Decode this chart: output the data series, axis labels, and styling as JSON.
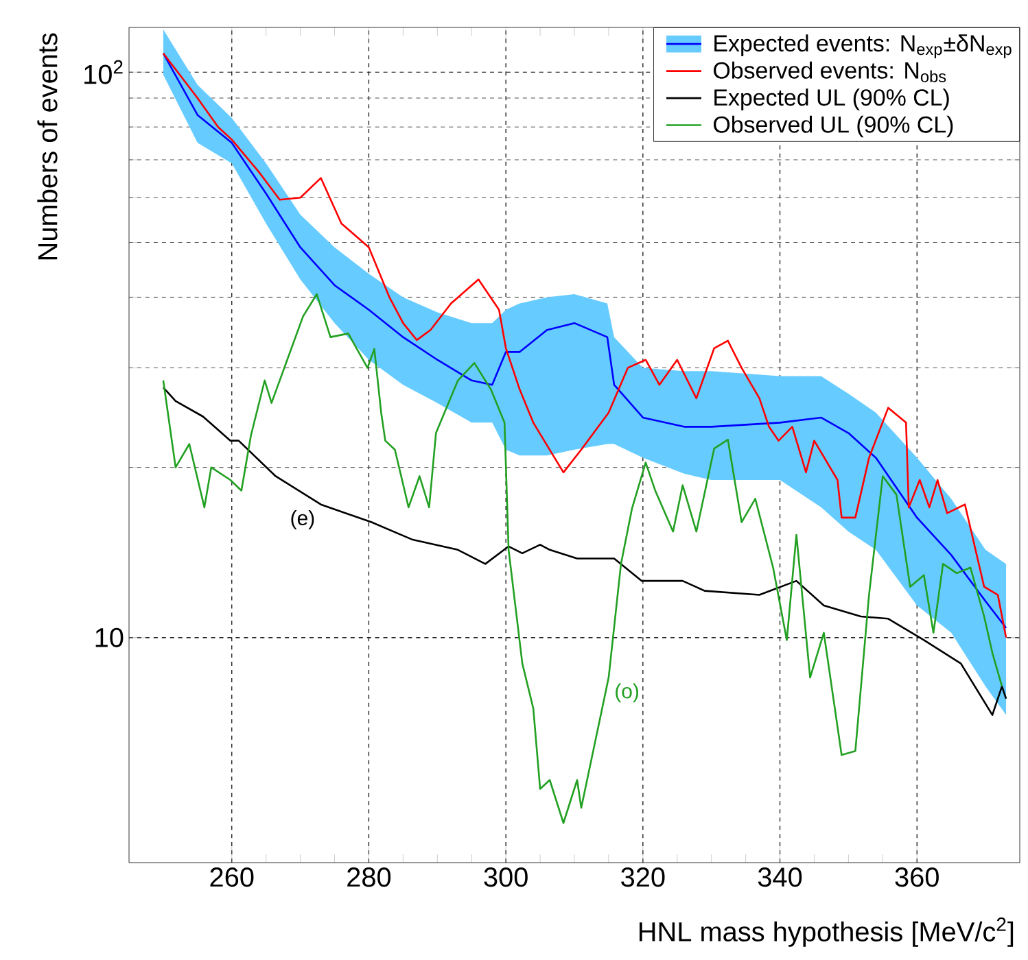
{
  "chart_data": {
    "type": "line",
    "xlabel": "HNL mass hypothesis [MeV/c$^{2}$]",
    "ylabel": "Numbers of events",
    "log": true,
    "grid": true,
    "legend": "top right",
    "line_style": "solid",
    "marker": "none",
    "xlim": [
      245,
      375
    ],
    "ylim": [
      4,
      120
    ],
    "xticks": [
      260,
      280,
      300,
      320,
      340,
      360
    ],
    "yticks": [
      {
        "value": 10,
        "label": "10"
      },
      {
        "value": 100,
        "label": "10$^{2}$"
      }
    ],
    "series": [
      {
        "name": "Expected events: N$_{exp}$±δN$_{exp}$",
        "color": "#0000ff",
        "x": [
          250,
          255,
          260,
          265,
          270,
          275,
          280,
          285,
          290,
          295,
          298,
          300,
          302,
          306,
          310,
          314.8,
          315.8,
          320,
          326,
          330,
          340,
          346,
          350,
          354,
          360,
          365,
          370,
          373
        ],
        "values": [
          108,
          84,
          75,
          61,
          49,
          42,
          38,
          34,
          31,
          28.5,
          28,
          32,
          32,
          35,
          36,
          34,
          28,
          24.5,
          23.6,
          23.6,
          24,
          24.5,
          23,
          20.8,
          16.3,
          14,
          11.6,
          10.4
        ],
        "lower": [
          99,
          75,
          69,
          54,
          43,
          36,
          31,
          28,
          26,
          24,
          24,
          21.5,
          21,
          21,
          21.5,
          22,
          22,
          20.8,
          19.5,
          19,
          19,
          17,
          15.4,
          14.3,
          11.4,
          10.2,
          8.2,
          7.3
        ],
        "upper": [
          119,
          95,
          83,
          69,
          56,
          49,
          44,
          40,
          37.6,
          36,
          36,
          38,
          39,
          40,
          40.5,
          39,
          34,
          30,
          29.6,
          29.6,
          29,
          29,
          27,
          25,
          20.8,
          17.6,
          14.3,
          13.5
        ]
      },
      {
        "name": "Observed events: N$_{obs}$",
        "color": "#ff0000",
        "x": [
          250,
          255,
          258,
          260,
          264,
          267,
          270,
          273,
          276,
          280,
          283,
          285,
          287,
          289,
          292,
          296,
          299,
          300,
          302,
          304,
          308.4,
          311,
          315,
          317.8,
          320.4,
          322.4,
          325,
          327.8,
          330.4,
          332.4,
          334.4,
          337,
          338.4,
          339.8,
          341.8,
          343.8,
          345,
          348.4,
          349,
          351,
          353,
          355.8,
          358.4,
          358.8,
          360.4,
          361.8,
          363,
          364.4,
          367,
          369.8,
          371.8,
          373
        ],
        "values": [
          108,
          90,
          80,
          76,
          66.5,
          59.5,
          60,
          65,
          54,
          49,
          40,
          36,
          33.6,
          35,
          39,
          43,
          38,
          32.5,
          27.5,
          24,
          19.6,
          21.5,
          25,
          30,
          31,
          28,
          31,
          26.5,
          32.5,
          33.5,
          30,
          26.5,
          23.6,
          22.3,
          23.6,
          19.6,
          22.3,
          19,
          16.3,
          16.3,
          20.8,
          25.5,
          24,
          17,
          19,
          17,
          19,
          16.6,
          17.2,
          12.3,
          11.9,
          10
        ]
      },
      {
        "name": "Expected UL (90% CL)",
        "color": "#000000",
        "x": [
          250,
          251.8,
          255.8,
          259.8,
          261,
          266.4,
          273,
          280.4,
          286.4,
          293,
          297,
          300.4,
          302.4,
          305,
          306.4,
          310.4,
          315.8,
          319.8,
          325.8,
          329,
          337,
          342.4,
          346.4,
          351.8,
          355.8,
          361,
          366.4,
          371,
          372.4,
          373
        ],
        "values": [
          27.7,
          26.2,
          24.6,
          22.3,
          22.3,
          19.3,
          17.2,
          16,
          14.9,
          14.3,
          13.5,
          14.5,
          14.1,
          14.6,
          14.3,
          13.8,
          13.8,
          12.6,
          12.6,
          12.1,
          11.9,
          12.6,
          11.4,
          10.9,
          10.8,
          9.9,
          9,
          7.3,
          8.2,
          7.8
        ]
      },
      {
        "name": "Observed UL (90% CL)",
        "color": "#22a022",
        "x": [
          250,
          251.8,
          253.8,
          256,
          257,
          259.8,
          261.4,
          262.8,
          264.8,
          265.8,
          270.4,
          272.4,
          274.4,
          277,
          279.8,
          280.8,
          281.8,
          282.4,
          283.8,
          285.8,
          287.4,
          288.8,
          289.8,
          293,
          295.4,
          297.8,
          299.8,
          300.4,
          302.4,
          304,
          305,
          306.4,
          308.4,
          310.4,
          311,
          315,
          316.8,
          318.4,
          320.4,
          321.8,
          324.4,
          325.8,
          327.8,
          330.4,
          332.4,
          334.4,
          336.4,
          339,
          341,
          342.4,
          344.4,
          346.4,
          349,
          351,
          353,
          355,
          357,
          359,
          361,
          362.4,
          363.8,
          365.8,
          367.8,
          369.8,
          371,
          372.4
        ],
        "values": [
          28.5,
          20,
          22,
          17,
          20,
          19,
          18.2,
          22.8,
          28.5,
          26,
          37,
          40.5,
          34,
          34.5,
          30,
          32.4,
          25,
          22.3,
          21.5,
          17,
          19.3,
          17,
          23,
          28.5,
          30.6,
          27.5,
          24,
          14.3,
          9,
          7.5,
          5.4,
          5.6,
          4.7,
          5.6,
          5,
          8.5,
          13.5,
          16.9,
          20.4,
          18.2,
          15.4,
          18.6,
          15.4,
          21.6,
          22.4,
          16,
          17.6,
          13.3,
          9.9,
          15.2,
          8.5,
          10.2,
          6.2,
          6.3,
          11.9,
          19.3,
          17.9,
          12.3,
          12.9,
          10.2,
          13.5,
          13,
          13.3,
          10.9,
          9.4,
          8.2
        ]
      }
    ],
    "annotations": [
      {
        "text": "(e)",
        "x": 273,
        "y": 17.2
      },
      {
        "text": "(o)",
        "x": 315,
        "y": 8.5
      }
    ]
  }
}
